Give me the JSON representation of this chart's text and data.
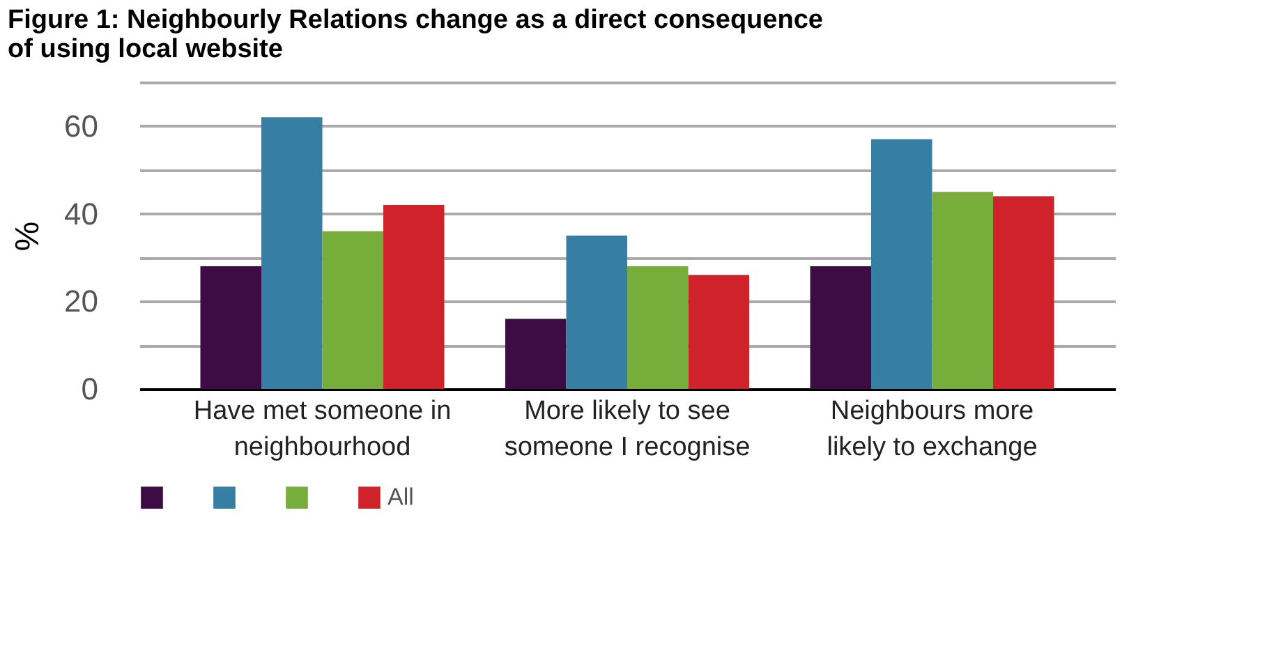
{
  "chart_data": {
    "type": "bar",
    "title": "Figure 1: Neighbourly Relations change as a direct consequence of using local website",
    "ylabel": "%",
    "categories": [
      "Have met someone in neighbourhood",
      "More likely to see someone I recognise",
      "Neighbours more likely to exchange"
    ],
    "series": [
      {
        "color": "#3d0c45",
        "values": [
          28,
          16,
          28
        ]
      },
      {
        "color": "#367ea4",
        "values": [
          62,
          35,
          57
        ]
      },
      {
        "color": "#77ad3a",
        "values": [
          36,
          28,
          45
        ]
      },
      {
        "name": "All",
        "color": "#d0222b",
        "values": [
          42,
          26,
          44
        ]
      }
    ],
    "ylim": [
      0,
      70
    ],
    "yticks": [
      0,
      {
        "value": 10,
        "label": null
      },
      20,
      {
        "value": 30,
        "label": null
      },
      40,
      {
        "value": 50,
        "label": null
      },
      60,
      {
        "value": 70,
        "label": null
      }
    ],
    "grid": "y",
    "legend": "bottom"
  }
}
